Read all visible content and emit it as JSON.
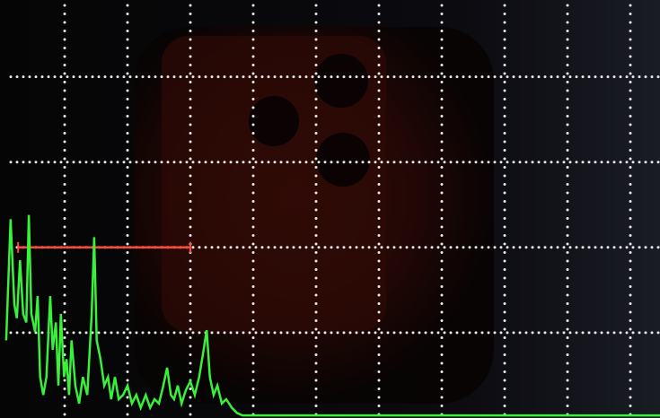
{
  "chart_data": {
    "type": "line",
    "grid": true,
    "xlim": [
      0,
      10.5
    ],
    "ylim": [
      0,
      4.9
    ],
    "xticks": [
      1,
      2,
      3,
      4,
      5,
      6,
      7,
      8,
      9,
      10
    ],
    "yticks": [
      1,
      2,
      3,
      4
    ],
    "grid_color": "#e8e8e8",
    "x": [
      0.07,
      0.14,
      0.2,
      0.24,
      0.29,
      0.34,
      0.39,
      0.43,
      0.47,
      0.53,
      0.57,
      0.61,
      0.66,
      0.71,
      0.77,
      0.81,
      0.86,
      0.9,
      0.94,
      0.99,
      1.03,
      1.07,
      1.11,
      1.17,
      1.23,
      1.29,
      1.36,
      1.43,
      1.47,
      1.51,
      1.57,
      1.63,
      1.69,
      1.74,
      1.8,
      1.86,
      1.93,
      2,
      2.07,
      2.14,
      2.21,
      2.29,
      2.36,
      2.43,
      2.5,
      2.57,
      2.63,
      2.69,
      2.74,
      2.8,
      2.86,
      2.93,
      3,
      3.07,
      3.14,
      3.2,
      3.26,
      3.31,
      3.37,
      3.43,
      3.5,
      3.57,
      3.66,
      3.74,
      3.83,
      10.5
    ],
    "series": [
      {
        "color": "#39f03a",
        "values": [
          0.91,
          2.33,
          1.33,
          1.17,
          1.85,
          1.22,
          1.12,
          2.38,
          1.22,
          1.01,
          1.43,
          0.48,
          0.27,
          0.48,
          1.43,
          0.8,
          1.12,
          0.38,
          1.22,
          0.48,
          0.69,
          0.27,
          0.91,
          0.38,
          0.17,
          0.48,
          0.27,
          1.22,
          2.12,
          0.91,
          0.69,
          0.38,
          0.48,
          0.22,
          0.48,
          0.22,
          0.27,
          0.38,
          0.17,
          0.27,
          0.12,
          0.27,
          0.12,
          0.22,
          0.17,
          0.38,
          0.59,
          0.27,
          0.22,
          0.38,
          0.17,
          0.33,
          0.43,
          0.27,
          0.48,
          0.75,
          1.03,
          0.48,
          0.27,
          0.38,
          0.17,
          0.22,
          0.12,
          0.06,
          0.03,
          0.03
        ]
      }
    ],
    "gate": {
      "start": 0.26,
      "end": 3.0,
      "level": 2.0,
      "color": "#ff4a3a"
    }
  }
}
